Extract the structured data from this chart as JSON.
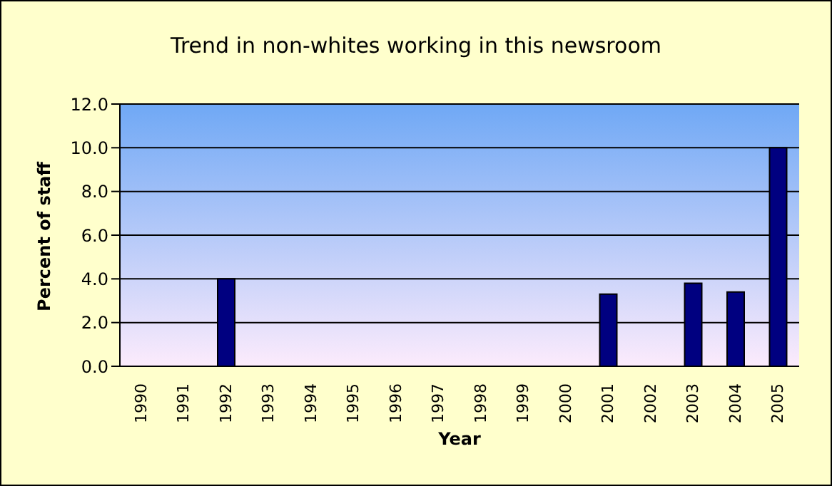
{
  "chart_data": {
    "type": "bar",
    "title": "Trend in non-whites working in this newsroom",
    "xlabel": "Year",
    "ylabel": "Percent of staff",
    "categories": [
      "1990",
      "1991",
      "1992",
      "1993",
      "1994",
      "1995",
      "1996",
      "1997",
      "1998",
      "1999",
      "2000",
      "2001",
      "2002",
      "2003",
      "2004",
      "2005"
    ],
    "values": [
      null,
      null,
      4.0,
      null,
      null,
      null,
      null,
      null,
      null,
      null,
      null,
      3.3,
      null,
      3.8,
      3.4,
      10.0
    ],
    "color": "#000080",
    "ylim": [
      0,
      12
    ],
    "yticks": [
      {
        "value": 0,
        "label": "0.0"
      },
      {
        "value": 2,
        "label": "2.0"
      },
      {
        "value": 4,
        "label": "4.0"
      },
      {
        "value": 6,
        "label": "6.0"
      },
      {
        "value": 8,
        "label": "8.0"
      },
      {
        "value": 10,
        "label": "10.0"
      },
      {
        "value": 12,
        "label": "12.0"
      }
    ],
    "grid": "y",
    "legend": false
  }
}
